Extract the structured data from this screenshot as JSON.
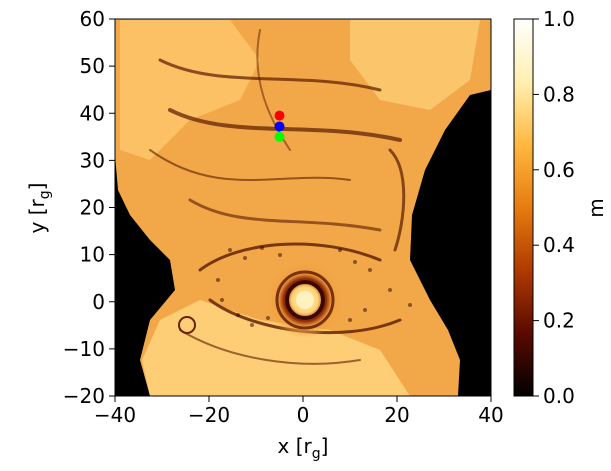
{
  "chart_data": {
    "type": "heatmap",
    "title": "",
    "xlabel": {
      "main": "x [r",
      "sub": "g",
      "close": "]"
    },
    "ylabel": {
      "main": "y [r",
      "sub": "g",
      "close": "]"
    },
    "xlim": [
      -40,
      40
    ],
    "ylim": [
      -20,
      60
    ],
    "x_ticks": [
      "−40",
      "−20",
      "0",
      "20",
      "40"
    ],
    "y_ticks": [
      "−20",
      "−10",
      "0",
      "10",
      "20",
      "30",
      "40",
      "50",
      "60"
    ],
    "colorbar": {
      "label": "m",
      "range": [
        0.0,
        1.0
      ],
      "ticks": [
        "0.0",
        "0.2",
        "0.4",
        "0.6",
        "0.8",
        "1.0"
      ],
      "colormap": "afmhot",
      "stops": [
        "#000000",
        "#5a0a00",
        "#b03a00",
        "#e67c10",
        "#ffb840",
        "#fff0b0",
        "#ffffff"
      ]
    },
    "field_description_colors": {
      "background_void": "#000000",
      "dominant": "#f0a040",
      "ridge": "#5a1a00",
      "highlight": "#ffe8a0"
    },
    "markers": [
      {
        "name": "red",
        "x": -5,
        "y": 39.5,
        "color": "#ff0000"
      },
      {
        "name": "blue",
        "x": -5,
        "y": 37.2,
        "color": "#0000ff"
      },
      {
        "name": "green",
        "x": -5,
        "y": 35,
        "color": "#00ff00"
      }
    ]
  }
}
